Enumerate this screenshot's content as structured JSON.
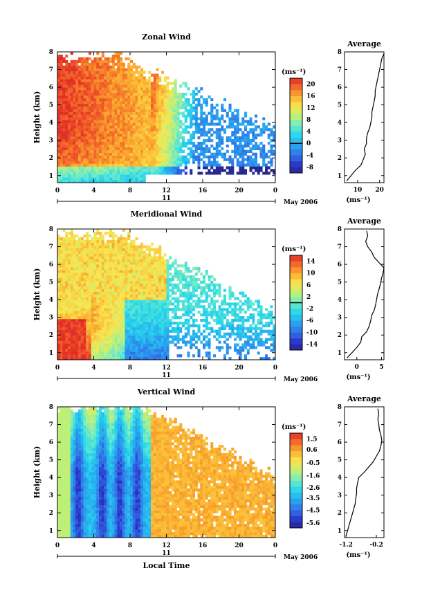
{
  "chart_data": [
    {
      "type": "heatmap",
      "title": "Zonal Wind",
      "ylabel": "Height (km)",
      "xlabel": "",
      "xlim": [
        0,
        24
      ],
      "ylim": [
        0.6,
        8
      ],
      "xticks": [
        "0",
        "4",
        "8",
        "12",
        "16",
        "20",
        "0"
      ],
      "xtick_values": [
        0,
        4,
        8,
        12,
        16,
        20,
        24
      ],
      "yticks": [
        "1",
        "2",
        "3",
        "4",
        "5",
        "6",
        "7",
        "8"
      ],
      "day_label": "11",
      "month_label": "May 2006",
      "colorbar": {
        "unit": "(ms⁻¹)",
        "ticks": [
          "20",
          "16",
          "12",
          "8",
          "4",
          "0",
          "-4",
          "-8"
        ],
        "min": -10,
        "max": 22,
        "contour": 0
      },
      "profile": {
        "title": "Average",
        "unit": "(ms⁻¹)",
        "xticks": [
          "10",
          "20"
        ],
        "xtick_values": [
          10,
          20
        ],
        "xlim": [
          4,
          22
        ],
        "heights": [
          0.7,
          1.0,
          1.3,
          1.6,
          1.9,
          2.2,
          2.5,
          2.8,
          3.1,
          3.4,
          3.7,
          4.0,
          4.3,
          4.6,
          4.9,
          5.2,
          5.5,
          5.8,
          6.1,
          6.4,
          6.7,
          7.0,
          7.3,
          7.6,
          7.9
        ],
        "values": [
          5,
          7,
          9,
          11.5,
          12.5,
          13.5,
          13,
          14,
          14,
          14.5,
          15.5,
          16,
          16.5,
          16.5,
          17,
          17.5,
          18,
          18,
          18.5,
          19,
          19.5,
          20,
          20.5,
          21,
          22
        ]
      }
    },
    {
      "type": "heatmap",
      "title": "Meridional Wind",
      "ylabel": "Height (km)",
      "xlabel": "",
      "xlim": [
        0,
        24
      ],
      "ylim": [
        0.6,
        8
      ],
      "xticks": [
        "0",
        "4",
        "8",
        "12",
        "16",
        "20",
        "0"
      ],
      "xtick_values": [
        0,
        4,
        8,
        12,
        16,
        20,
        24
      ],
      "yticks": [
        "1",
        "2",
        "3",
        "4",
        "5",
        "6",
        "7",
        "8"
      ],
      "day_label": "11",
      "month_label": "May 2006",
      "colorbar": {
        "unit": "(ms⁻¹)",
        "ticks": [
          "14",
          "10",
          "6",
          "2",
          "-2",
          "-6",
          "-10",
          "-14"
        ],
        "min": -16,
        "max": 16,
        "contour": 0
      },
      "profile": {
        "title": "Average",
        "unit": "(ms⁻¹)",
        "xticks": [
          "0",
          "5"
        ],
        "xtick_values": [
          0,
          5
        ],
        "xlim": [
          -2.5,
          5.5
        ],
        "heights": [
          0.7,
          1.0,
          1.3,
          1.6,
          1.9,
          2.2,
          2.5,
          2.8,
          3.1,
          3.4,
          3.7,
          4.0,
          4.3,
          4.6,
          4.9,
          5.2,
          5.5,
          5.8,
          6.1,
          6.4,
          6.7,
          7.0,
          7.3,
          7.6,
          7.9
        ],
        "values": [
          -2,
          -1,
          0,
          0.8,
          1,
          2,
          2.5,
          2.8,
          3,
          3.5,
          3.8,
          4,
          4.2,
          4.5,
          4.8,
          5,
          5.3,
          5.5,
          4.5,
          3.5,
          3,
          2.2,
          1.8,
          2.2,
          2
        ]
      }
    },
    {
      "type": "heatmap",
      "title": "Vertical Wind",
      "ylabel": "Height (km)",
      "xlabel": "Local Time",
      "xlim": [
        0,
        24
      ],
      "ylim": [
        0.6,
        8
      ],
      "xticks": [
        "0",
        "4",
        "8",
        "12",
        "16",
        "20",
        "0"
      ],
      "xtick_values": [
        0,
        4,
        8,
        12,
        16,
        20,
        24
      ],
      "yticks": [
        "1",
        "2",
        "3",
        "4",
        "5",
        "6",
        "7",
        "8"
      ],
      "day_label": "11",
      "month_label": "May 2006",
      "colorbar": {
        "unit": "(ms⁻¹)",
        "ticks": [
          "1.5",
          "0.6",
          "-0.5",
          "-1.6",
          "-2.6",
          "-3.5",
          "-4.5",
          "-5.6"
        ],
        "min": -6,
        "max": 2,
        "contour": null
      },
      "profile": {
        "title": "Average",
        "unit": "(ms⁻¹)",
        "xticks": [
          "-1.2",
          "-0.2"
        ],
        "xtick_values": [
          -1.2,
          -0.2
        ],
        "xlim": [
          -1.25,
          0.05
        ],
        "heights": [
          0.7,
          1.0,
          1.3,
          1.6,
          1.9,
          2.2,
          2.5,
          2.8,
          3.1,
          3.4,
          3.7,
          4.0,
          4.3,
          4.6,
          4.9,
          5.2,
          5.5,
          5.8,
          6.1,
          6.4,
          6.7,
          7.0,
          7.3,
          7.6,
          7.9
        ],
        "values": [
          -1.2,
          -1.15,
          -1.1,
          -1.05,
          -1.0,
          -0.95,
          -0.9,
          -0.88,
          -0.85,
          -0.85,
          -0.82,
          -0.78,
          -0.6,
          -0.45,
          -0.3,
          -0.2,
          -0.1,
          -0.05,
          -0.02,
          -0.05,
          -0.1,
          -0.12,
          -0.15,
          -0.12,
          -0.15
        ]
      }
    }
  ]
}
